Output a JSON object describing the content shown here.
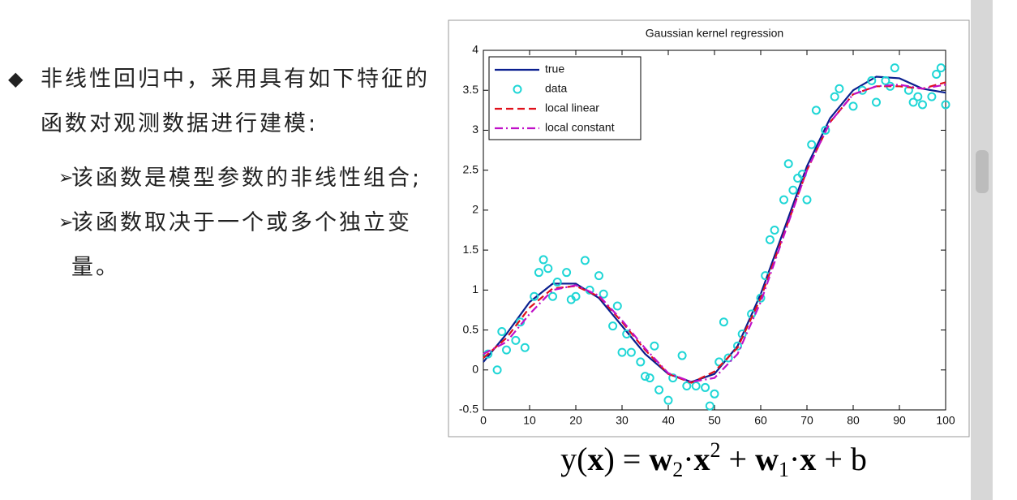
{
  "slide": {
    "bullet": "非线性回归中，采用具有如下特征的函数对观测数据进行建模:",
    "sub_bullets": [
      "该函数是模型参数的非线性组合;",
      "该函数取决于一个或多个独立变量。"
    ]
  },
  "equation": [
    {
      "text": "y(",
      "style": "normal"
    },
    {
      "text": "x",
      "style": "bold"
    },
    {
      "text": ") = ",
      "style": "normal"
    },
    {
      "text": "w",
      "style": "bold"
    },
    {
      "text": "2",
      "style": "sub"
    },
    {
      "text": "·",
      "style": "normal"
    },
    {
      "text": "x",
      "style": "bold"
    },
    {
      "text": "2",
      "style": "sup"
    },
    {
      "text": " + ",
      "style": "normal"
    },
    {
      "text": "w",
      "style": "bold"
    },
    {
      "text": "1",
      "style": "sub"
    },
    {
      "text": "·",
      "style": "normal"
    },
    {
      "text": "x",
      "style": "bold"
    },
    {
      "text": " + b",
      "style": "normal"
    }
  ],
  "chart_data": {
    "type": "line",
    "title": "Gaussian kernel regression",
    "x": [
      0,
      5,
      10,
      15,
      20,
      25,
      30,
      35,
      40,
      45,
      50,
      55,
      60,
      65,
      70,
      75,
      80,
      85,
      90,
      95,
      100
    ],
    "series": [
      {
        "name": "true",
        "color": "#0a1f8f",
        "dash": "solid",
        "values": [
          0.1,
          0.45,
          0.85,
          1.08,
          1.08,
          0.9,
          0.55,
          0.2,
          -0.05,
          -0.15,
          -0.05,
          0.3,
          0.95,
          1.75,
          2.55,
          3.15,
          3.5,
          3.67,
          3.65,
          3.52,
          3.47
        ]
      },
      {
        "name": "data",
        "color": "#1fd6d6",
        "marker": "circle",
        "x": [
          1,
          3,
          4,
          5,
          7,
          8,
          9,
          11,
          12,
          13,
          14,
          15,
          16,
          18,
          19,
          20,
          22,
          23,
          25,
          26,
          28,
          29,
          30,
          31,
          32,
          34,
          35,
          36,
          37,
          38,
          40,
          41,
          43,
          44,
          46,
          48,
          49,
          50,
          51,
          52,
          53,
          55,
          56,
          58,
          60,
          61,
          62,
          63,
          65,
          66,
          67,
          68,
          69,
          70,
          71,
          72,
          74,
          76,
          77,
          80,
          82,
          84,
          85,
          87,
          88,
          89,
          92,
          93,
          94,
          95,
          97,
          98,
          99,
          100
        ],
        "values": [
          0.2,
          0,
          0.48,
          0.25,
          0.37,
          0.6,
          0.28,
          0.92,
          1.22,
          1.38,
          1.27,
          0.92,
          1.1,
          1.22,
          0.88,
          0.92,
          1.37,
          1,
          1.18,
          0.95,
          0.55,
          0.8,
          0.22,
          0.45,
          0.22,
          0.1,
          -0.08,
          -0.1,
          0.3,
          -0.25,
          -0.38,
          -0.1,
          0.18,
          -0.2,
          -0.2,
          -0.22,
          -0.45,
          -0.3,
          0.1,
          0.6,
          0.15,
          0.3,
          0.45,
          0.7,
          0.9,
          1.18,
          1.63,
          1.75,
          2.13,
          2.58,
          2.25,
          2.4,
          2.45,
          2.13,
          2.82,
          3.25,
          3,
          3.42,
          3.52,
          3.3,
          3.5,
          3.62,
          3.35,
          3.62,
          3.55,
          3.78,
          3.5,
          3.35,
          3.42,
          3.32,
          3.42,
          3.7,
          3.78,
          3.32
        ]
      },
      {
        "name": "local linear",
        "color": "#e0101a",
        "dash": "dashed",
        "values": [
          0.15,
          0.4,
          0.78,
          1.02,
          1.05,
          0.92,
          0.6,
          0.25,
          -0.05,
          -0.16,
          -0.02,
          0.28,
          0.9,
          1.7,
          2.5,
          3.1,
          3.45,
          3.55,
          3.55,
          3.52,
          3.6
        ]
      },
      {
        "name": "local constant",
        "color": "#c010c8",
        "dash": "dashdot",
        "values": [
          0.2,
          0.35,
          0.7,
          1.0,
          1.06,
          0.93,
          0.62,
          0.27,
          -0.04,
          -0.15,
          -0.1,
          0.2,
          0.85,
          1.68,
          2.5,
          3.1,
          3.45,
          3.55,
          3.57,
          3.52,
          3.57
        ]
      }
    ],
    "xlim": [
      0,
      100
    ],
    "xticks": [
      0,
      10,
      20,
      30,
      40,
      50,
      60,
      70,
      80,
      90,
      100
    ],
    "ylim": [
      -0.5,
      4
    ],
    "yticks": [
      -0.5,
      0,
      0.5,
      1,
      1.5,
      2,
      2.5,
      3,
      3.5,
      4
    ],
    "legend": "upper-left",
    "grid": false
  }
}
